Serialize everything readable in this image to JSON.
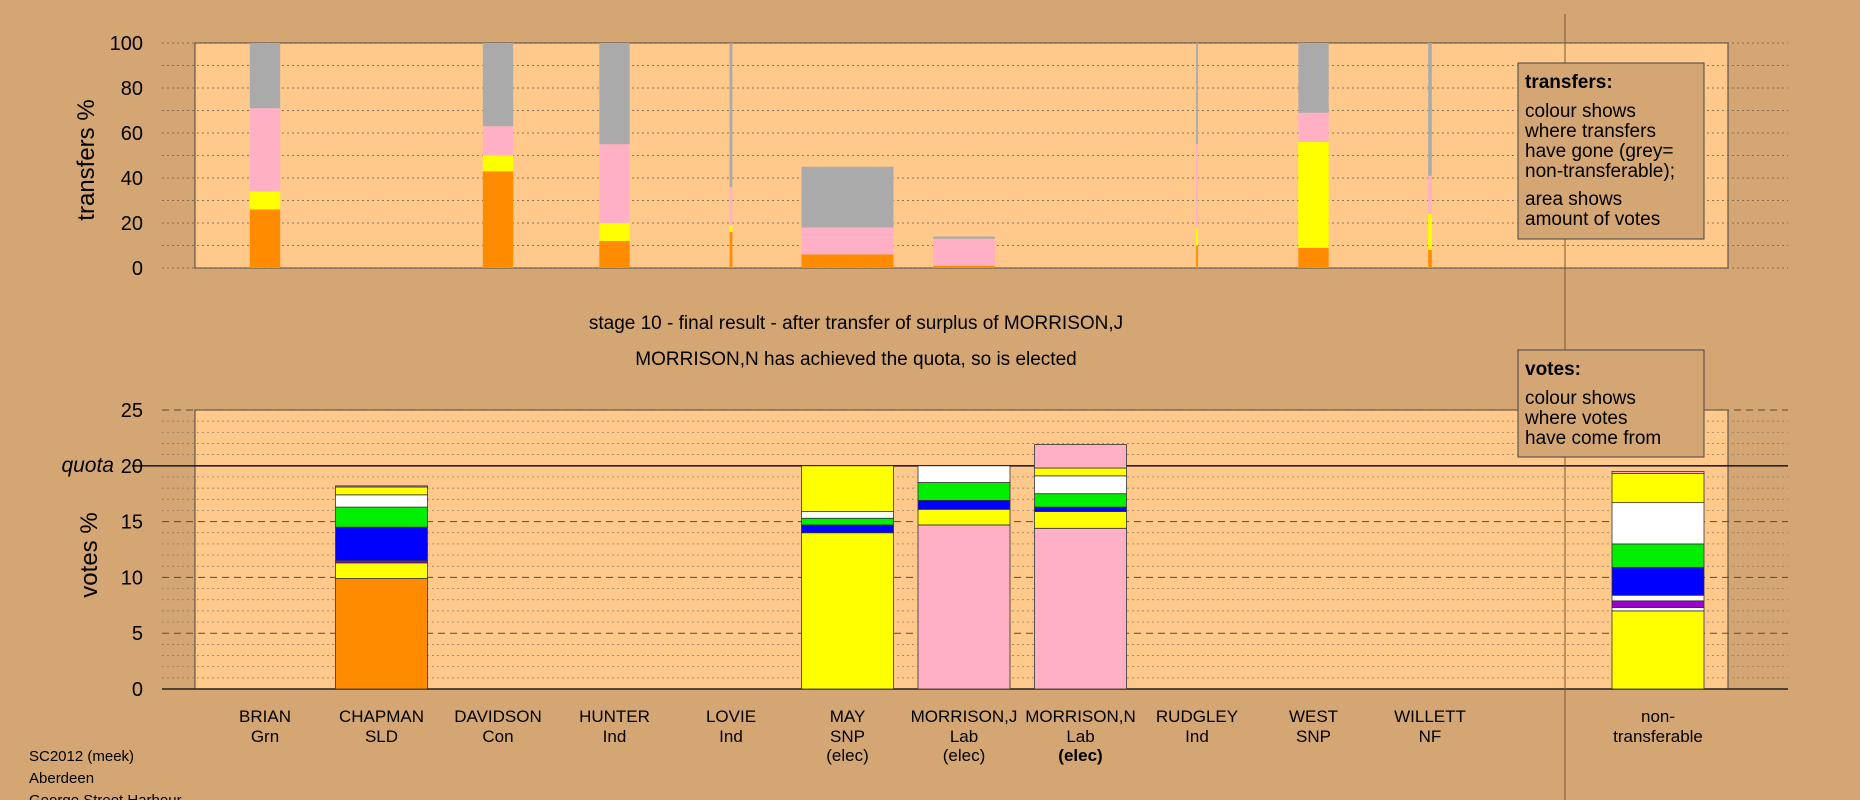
{
  "colors": {
    "page_bg": "#d4a673",
    "plot_bg": "#ffc98c",
    "nt": "#aaaaaa",
    "Lab": "#ffb0c4",
    "SNP": "#ffff00",
    "SLD": "#ff8c00",
    "Con": "#0000ff",
    "Grn": "#00ee00",
    "Ind": "#ffffff",
    "NF": "#9900cc"
  },
  "transfer_chart": {
    "ylabel": "transfers %",
    "yticks": [
      "0",
      "20",
      "40",
      "60",
      "80",
      "100"
    ]
  },
  "votes_chart": {
    "ylabel": "votes %",
    "yticks": [
      "0",
      "5",
      "10",
      "15",
      "20",
      "25"
    ],
    "quota_label": "quota"
  },
  "titles": {
    "stage": "stage 10 - final result - after transfer of surplus of MORRISON,J",
    "elected": "MORRISON,N has achieved the quota, so is elected"
  },
  "legend_transfers": {
    "title": "transfers:",
    "lines": [
      "colour shows",
      "where transfers",
      "have gone (grey=",
      "non-transferable);"
    ],
    "lines2": [
      "area shows",
      "amount of votes"
    ]
  },
  "legend_votes": {
    "title": "votes:",
    "lines": [
      "colour shows",
      "where votes",
      "have come from"
    ]
  },
  "candidates": [
    {
      "name": "BRIAN",
      "party": "Grn",
      "status": ""
    },
    {
      "name": "CHAPMAN",
      "party": "SLD",
      "status": ""
    },
    {
      "name": "DAVIDSON",
      "party": "Con",
      "status": ""
    },
    {
      "name": "HUNTER",
      "party": "Ind",
      "status": ""
    },
    {
      "name": "LOVIE",
      "party": "Ind",
      "status": ""
    },
    {
      "name": "MAY",
      "party": "SNP",
      "status": "(elec)"
    },
    {
      "name": "MORRISON,J",
      "party": "Lab",
      "status": "(elec)"
    },
    {
      "name": "MORRISON,N",
      "party": "Lab",
      "status": "(elec)"
    },
    {
      "name": "RUDGLEY",
      "party": "Ind",
      "status": ""
    },
    {
      "name": "WEST",
      "party": "SNP",
      "status": ""
    },
    {
      "name": "WILLETT",
      "party": "NF",
      "status": ""
    }
  ],
  "nontransferable_label": [
    "non-",
    "transferable"
  ],
  "footer": [
    "SC2012 (meek)",
    "Aberdeen",
    "George Street Harbour"
  ],
  "chart_data": [
    {
      "type": "bar",
      "note": "transfers: stacked segments from bottom; value = % of transferred votes; width proportional to amount of votes transferred",
      "categories": [
        "BRIAN",
        "CHAPMAN",
        "DAVIDSON",
        "HUNTER",
        "LOVIE",
        "MAY",
        "MORRISON,J",
        "MORRISON,N",
        "RUDGLEY",
        "WEST",
        "WILLETT"
      ],
      "ylim": [
        0,
        100
      ],
      "bars": [
        {
          "category": "BRIAN",
          "relative_amount": 0.33,
          "segments": [
            {
              "party": "SLD",
              "value": 26
            },
            {
              "party": "SNP",
              "value": 8
            },
            {
              "party": "Lab",
              "value": 37
            },
            {
              "party": "nt",
              "value": 29
            }
          ]
        },
        {
          "category": "DAVIDSON",
          "relative_amount": 0.33,
          "segments": [
            {
              "party": "SLD",
              "value": 43
            },
            {
              "party": "SNP",
              "value": 7
            },
            {
              "party": "Lab",
              "value": 13
            },
            {
              "party": "nt",
              "value": 37
            }
          ]
        },
        {
          "category": "HUNTER",
          "relative_amount": 0.33,
          "segments": [
            {
              "party": "SLD",
              "value": 12
            },
            {
              "party": "SNP",
              "value": 8
            },
            {
              "party": "Lab",
              "value": 35
            },
            {
              "party": "nt",
              "value": 45
            }
          ]
        },
        {
          "category": "LOVIE",
          "relative_amount": 0.03,
          "segments": [
            {
              "party": "SLD",
              "value": 16
            },
            {
              "party": "SNP",
              "value": 3
            },
            {
              "party": "Lab",
              "value": 17
            },
            {
              "party": "nt",
              "value": 64
            }
          ]
        },
        {
          "category": "MAY",
          "relative_amount": 1.0,
          "segments": [
            {
              "party": "SLD",
              "value": 6
            },
            {
              "party": "Lab",
              "value": 12
            },
            {
              "party": "nt",
              "value": 27
            }
          ]
        },
        {
          "category": "MORRISON,J",
          "relative_amount": 0.67,
          "segments": [
            {
              "party": "SLD",
              "value": 1
            },
            {
              "party": "Lab",
              "value": 12
            },
            {
              "party": "nt",
              "value": 1
            }
          ]
        },
        {
          "category": "RUDGLEY",
          "relative_amount": 0.02,
          "segments": [
            {
              "party": "SLD",
              "value": 10
            },
            {
              "party": "SNP",
              "value": 8
            },
            {
              "party": "Lab",
              "value": 37
            },
            {
              "party": "nt",
              "value": 45
            }
          ]
        },
        {
          "category": "WEST",
          "relative_amount": 0.33,
          "segments": [
            {
              "party": "SLD",
              "value": 9
            },
            {
              "party": "SNP",
              "value": 47
            },
            {
              "party": "Lab",
              "value": 13
            },
            {
              "party": "nt",
              "value": 31
            }
          ]
        },
        {
          "category": "WILLETT",
          "relative_amount": 0.04,
          "segments": [
            {
              "party": "SLD",
              "value": 8
            },
            {
              "party": "SNP",
              "value": 16
            },
            {
              "party": "Lab",
              "value": 17
            },
            {
              "party": "nt",
              "value": 59
            }
          ]
        }
      ]
    },
    {
      "type": "bar",
      "note": "votes %: stacked segments from bottom, colour = party the votes came from",
      "categories": [
        "BRIAN",
        "CHAPMAN",
        "DAVIDSON",
        "HUNTER",
        "LOVIE",
        "MAY",
        "MORRISON,J",
        "MORRISON,N",
        "RUDGLEY",
        "WEST",
        "WILLETT",
        "non-transferable"
      ],
      "ylim": [
        0,
        25
      ],
      "quota": 20,
      "bars": [
        {
          "category": "CHAPMAN",
          "segments": [
            {
              "party": "SLD",
              "value": 9.9
            },
            {
              "party": "SNP",
              "value": 1.4
            },
            {
              "party": "NF",
              "value": 0.2
            },
            {
              "party": "Con",
              "value": 3
            },
            {
              "party": "Grn",
              "value": 1.8
            },
            {
              "party": "Ind",
              "value": 1.1
            },
            {
              "party": "SNP",
              "value": 0.7
            },
            {
              "party": "Lab",
              "value": 0.1
            }
          ]
        },
        {
          "category": "MAY",
          "segments": [
            {
              "party": "SNP",
              "value": 14
            },
            {
              "party": "Con",
              "value": 0.7
            },
            {
              "party": "Grn",
              "value": 0.6
            },
            {
              "party": "Ind",
              "value": 0.6
            },
            {
              "party": "SNP",
              "value": 4.1
            }
          ]
        },
        {
          "category": "MORRISON,J",
          "segments": [
            {
              "party": "Lab",
              "value": 14.7
            },
            {
              "party": "SNP",
              "value": 1.4
            },
            {
              "party": "Con",
              "value": 0.8
            },
            {
              "party": "Grn",
              "value": 1.6
            },
            {
              "party": "Ind",
              "value": 1.5
            }
          ]
        },
        {
          "category": "MORRISON,N",
          "segments": [
            {
              "party": "Lab",
              "value": 14.4
            },
            {
              "party": "SNP",
              "value": 1.5
            },
            {
              "party": "Con",
              "value": 0.4
            },
            {
              "party": "Grn",
              "value": 1.2
            },
            {
              "party": "Ind",
              "value": 1.6
            },
            {
              "party": "SNP",
              "value": 0.7
            },
            {
              "party": "Lab",
              "value": 2.1
            }
          ]
        },
        {
          "category": "non-transferable",
          "segments": [
            {
              "party": "SNP",
              "value": 7
            },
            {
              "party": "Ind",
              "value": 0.3
            },
            {
              "party": "NF",
              "value": 0.6
            },
            {
              "party": "Ind",
              "value": 0.5
            },
            {
              "party": "Con",
              "value": 2.5
            },
            {
              "party": "Grn",
              "value": 2.1
            },
            {
              "party": "Ind",
              "value": 3.7
            },
            {
              "party": "SNP",
              "value": 2.6
            },
            {
              "party": "Lab",
              "value": 0.2
            }
          ]
        }
      ]
    }
  ]
}
